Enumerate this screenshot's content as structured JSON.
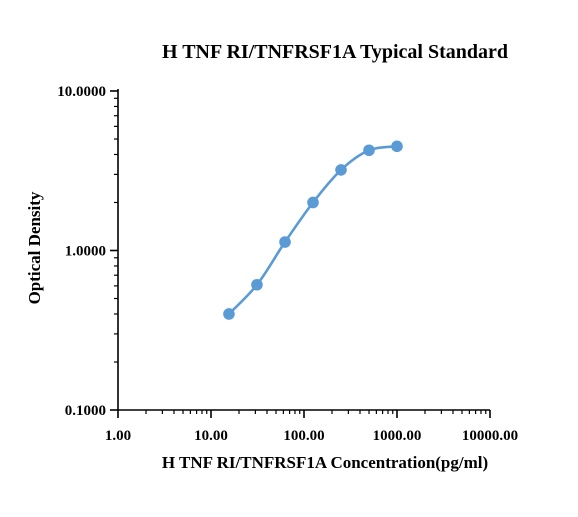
{
  "chart_data": {
    "type": "scatter",
    "title": "H TNF RI/TNFRSF1A Typical Standard",
    "xlabel": "H TNF RI/TNFRSF1A Concentration(pg/ml)",
    "ylabel": "Optical Density",
    "x_scale": "log",
    "y_scale": "log",
    "xlim": [
      1,
      10000
    ],
    "ylim": [
      0.1,
      10
    ],
    "x_ticks": [
      1,
      10,
      100,
      1000,
      10000
    ],
    "x_tick_labels": [
      "1.00",
      "10.00",
      "100.00",
      "1000.00",
      "10000.00"
    ],
    "y_ticks": [
      0.1,
      1,
      10
    ],
    "y_tick_labels": [
      "0.1000",
      "1.0000",
      "10.0000"
    ],
    "grid": false,
    "series": [
      {
        "color": "#5b9bd5",
        "fitted_curve": true,
        "x": [
          15.6,
          31.2,
          62.5,
          125,
          250,
          500,
          1000
        ],
        "y": [
          0.4,
          0.61,
          1.13,
          2.0,
          3.2,
          4.25,
          4.5
        ]
      }
    ]
  }
}
